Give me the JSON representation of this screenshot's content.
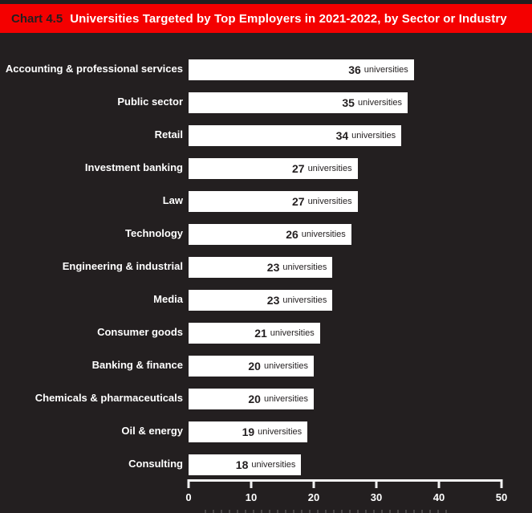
{
  "header": {
    "tag": "Chart 4.5",
    "title": "Universities Targeted by Top Employers in 2021-2022, by Sector or Industry",
    "background_color": "#f40000",
    "tag_color": "#231f20",
    "title_color": "#ffffff"
  },
  "chart_data": {
    "type": "bar",
    "orientation": "horizontal",
    "title": "Universities Targeted by Top Employers in 2021-2022, by Sector or Industry",
    "categories": [
      "Accounting & professional services",
      "Public sector",
      "Retail",
      "Investment banking",
      "Law",
      "Technology",
      "Engineering & industrial",
      "Media",
      "Consumer goods",
      "Banking & finance",
      "Chemicals & pharmaceuticals",
      "Oil & energy",
      "Consulting"
    ],
    "values": [
      36,
      35,
      34,
      27,
      27,
      26,
      23,
      23,
      21,
      20,
      20,
      19,
      18
    ],
    "value_suffix": "universities",
    "xlabel": "",
    "xlim": [
      0,
      50
    ],
    "xticks": [
      0,
      10,
      20,
      30,
      40,
      50
    ],
    "bar_color": "#ffffff",
    "value_text_color": "#231f20",
    "background_color": "#231f20",
    "axis_color": "#f2f2f2",
    "grid": false,
    "legend": "none"
  }
}
